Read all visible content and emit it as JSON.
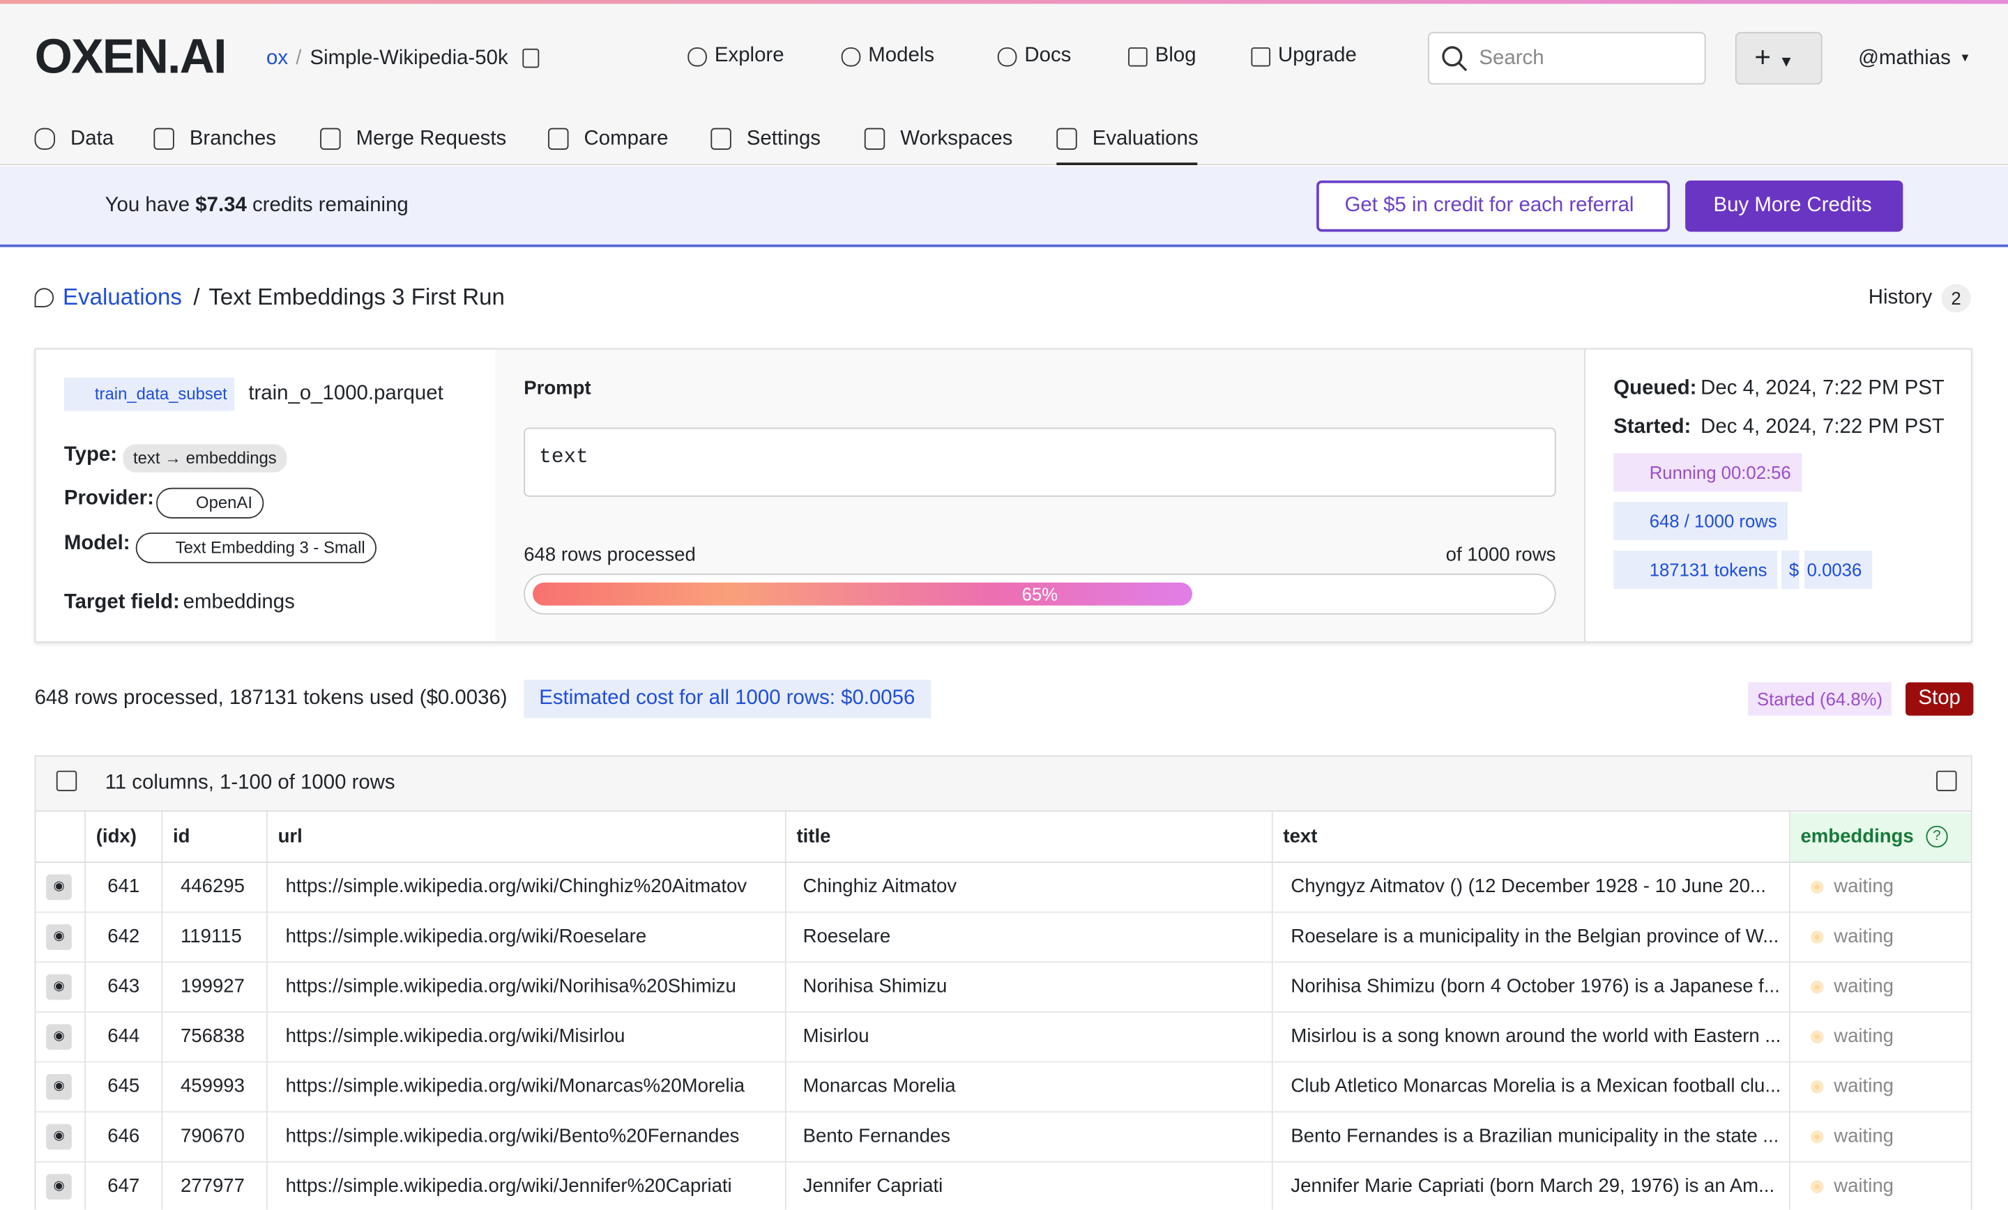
{
  "header": {
    "logo": "OXEN.AI",
    "owner": "ox",
    "separator": "/",
    "repo": "Simple-Wikipedia-50k",
    "nav": [
      "Explore",
      "Models",
      "Docs",
      "Blog",
      "Upgrade"
    ],
    "search_placeholder": "Search",
    "user": "@mathias"
  },
  "tabs": [
    "Data",
    "Branches",
    "Merge Requests",
    "Compare",
    "Settings",
    "Workspaces",
    "Evaluations"
  ],
  "banner": {
    "prefix": "You have",
    "amount": "$7.34",
    "suffix": "credits remaining",
    "referral": "Get $5 in credit for each referral",
    "buy": "Buy More Credits"
  },
  "page_breadcrumb": {
    "link": "Evaluations",
    "separator": "/",
    "title": "Text Embeddings 3 First Run",
    "history_label": "History",
    "history_count": 2
  },
  "details": {
    "branch": "train_data_subset",
    "file": "train_o_1000.parquet",
    "type_label": "Type:",
    "type": "text → embeddings",
    "provider_label": "Provider:",
    "provider": "OpenAI",
    "model_label": "Model:",
    "model": "Text Embedding 3 - Small",
    "target_label": "Target field:",
    "target": "embeddings"
  },
  "prompt": {
    "label": "Prompt",
    "text": "text",
    "processed": "648 rows processed",
    "total": "of 1000 rows",
    "progress": {
      "value": 65,
      "label": "65%"
    }
  },
  "status": {
    "queued_label": "Queued:",
    "queued": "Dec 4, 2024, 7:22 PM PST",
    "started_label": "Started:",
    "started": "Dec 4, 2024, 7:22 PM PST",
    "running": "Running 00:02:56",
    "rows": "648 / 1000 rows",
    "tokens": "187131 tokens",
    "cost_symbol": "$",
    "cost": "0.0036"
  },
  "summary": {
    "text": "648 rows processed, 187131 tokens used ($0.0036)",
    "estimate": "Estimated cost for all 1000 rows: $0.0056",
    "state": "Started (64.8%)",
    "stop": "Stop"
  },
  "table": {
    "caption": "11 columns, 1-100 of 1000 rows",
    "columns": [
      "(idx)",
      "id",
      "url",
      "title",
      "text",
      "embeddings"
    ],
    "rows": [
      [
        641,
        446295,
        "https://simple.wikipedia.org/wiki/Chinghiz%20Aitmatov",
        "Chinghiz Aitmatov",
        "Chyngyz Aitmatov () (12 December 1928 - 10 June 20...",
        "waiting"
      ],
      [
        642,
        119115,
        "https://simple.wikipedia.org/wiki/Roeselare",
        "Roeselare",
        "Roeselare is a municipality in the Belgian province of W...",
        "waiting"
      ],
      [
        643,
        199927,
        "https://simple.wikipedia.org/wiki/Norihisa%20Shimizu",
        "Norihisa Shimizu",
        "Norihisa Shimizu (born 4 October 1976) is a Japanese f...",
        "waiting"
      ],
      [
        644,
        756838,
        "https://simple.wikipedia.org/wiki/Misirlou",
        "Misirlou",
        "Misirlou is a song known around the world with Eastern ...",
        "waiting"
      ],
      [
        645,
        459993,
        "https://simple.wikipedia.org/wiki/Monarcas%20Morelia",
        "Monarcas Morelia",
        "Club Atletico Monarcas Morelia is a Mexican football clu...",
        "waiting"
      ],
      [
        646,
        790670,
        "https://simple.wikipedia.org/wiki/Bento%20Fernandes",
        "Bento Fernandes",
        "Bento Fernandes is a Brazilian municipality in the state ...",
        "waiting"
      ],
      [
        647,
        277977,
        "https://simple.wikipedia.org/wiki/Jennifer%20Capriati",
        "Jennifer Capriati",
        "Jennifer Marie Capriati (born March 29, 1976) is an Am...",
        "waiting"
      ]
    ]
  }
}
